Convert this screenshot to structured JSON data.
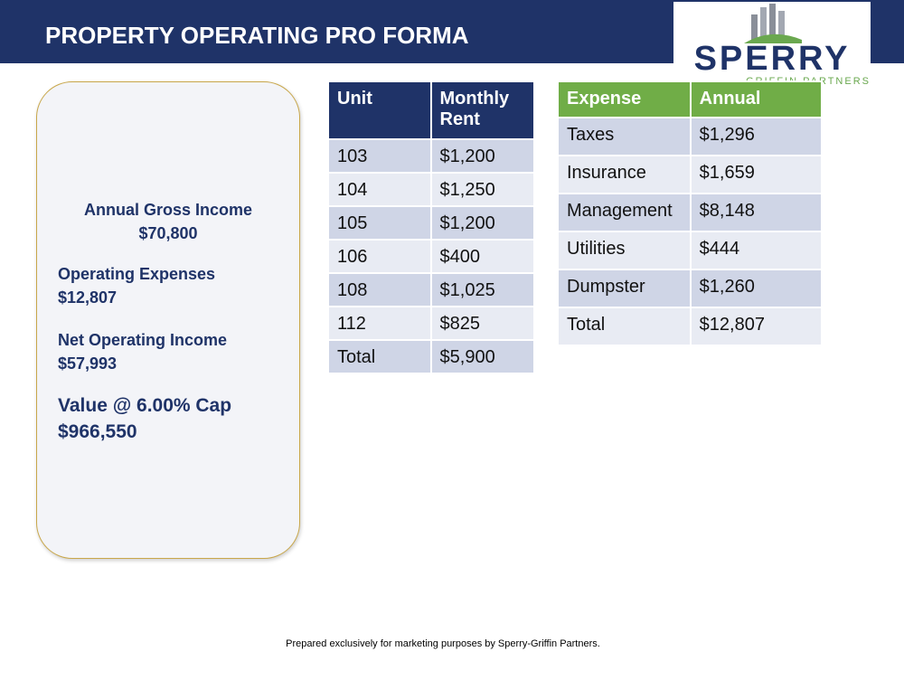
{
  "header": {
    "title": "PROPERTY OPERATING PRO FORMA"
  },
  "logo": {
    "name": "SPERRY",
    "tagline": "GRIFFIN PARTNERS"
  },
  "summary": {
    "gross_income": {
      "label": "Annual Gross Income",
      "value": "$70,800"
    },
    "operating_expenses": {
      "label": "Operating Expenses",
      "value": "$12,807"
    },
    "net_operating_income": {
      "label": "Net Operating Income",
      "value": "$57,993"
    },
    "valuation": {
      "label": "Value @ 6.00% Cap",
      "value": "$966,550"
    }
  },
  "rent_table": {
    "columns": [
      "Unit",
      "Monthly Rent"
    ],
    "rows": [
      [
        "103",
        "$1,200"
      ],
      [
        "104",
        "$1,250"
      ],
      [
        "105",
        "$1,200"
      ],
      [
        "106",
        "$400"
      ],
      [
        "108",
        "$1,025"
      ],
      [
        "112",
        "$825"
      ],
      [
        "Total",
        "$5,900"
      ]
    ]
  },
  "expense_table": {
    "columns": [
      "Expense",
      "Annual"
    ],
    "rows": [
      [
        "Taxes",
        "$1,296"
      ],
      [
        "Insurance",
        "$1,659"
      ],
      [
        "Management",
        "$8,148"
      ],
      [
        "Utilities",
        "$444"
      ],
      [
        "Dumpster",
        "$1,260"
      ],
      [
        "Total",
        "$12,807"
      ]
    ]
  },
  "footer": {
    "text": "Prepared exclusively for marketing purposes by Sperry-Griffin Partners."
  }
}
